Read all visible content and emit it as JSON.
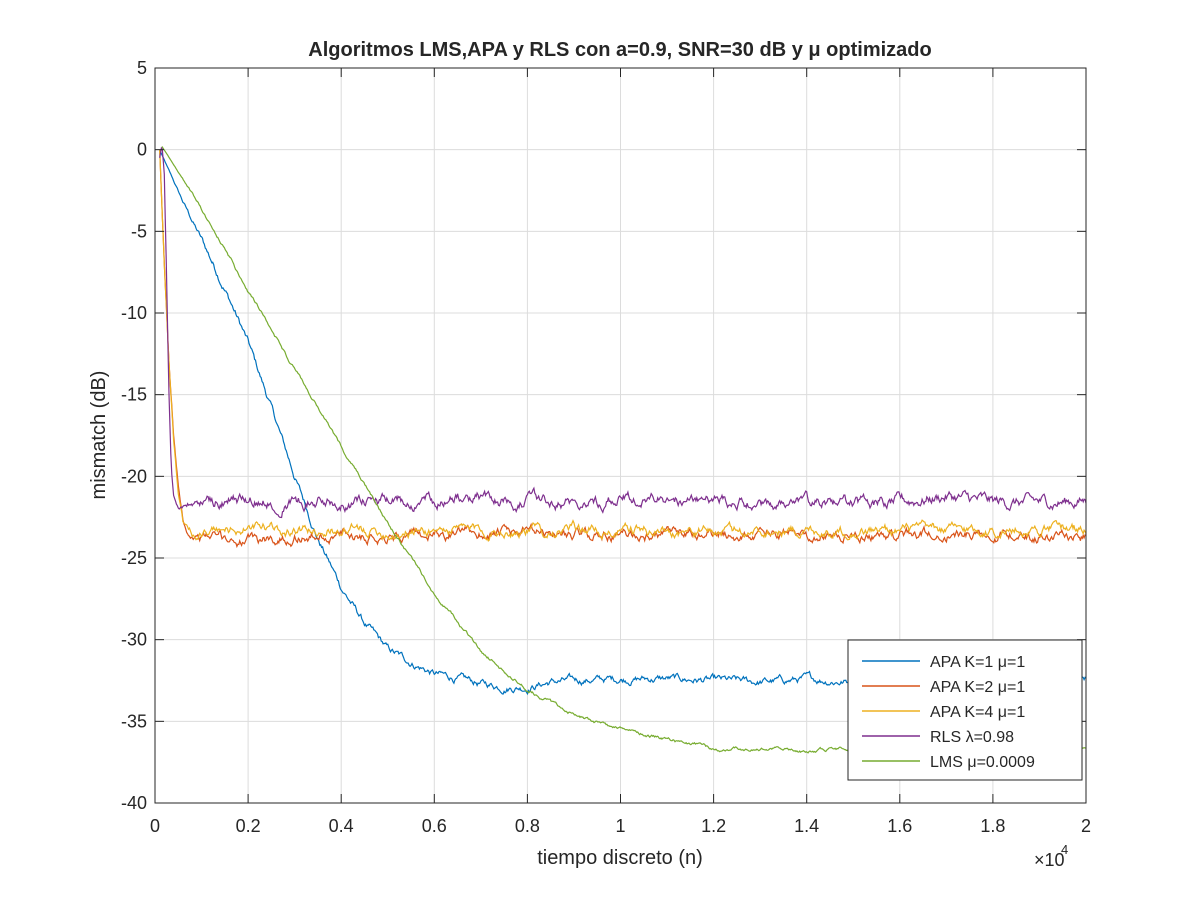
{
  "chart_data": {
    "type": "line",
    "title": "Algoritmos LMS,APA y RLS con a=0.9, SNR=30 dB y μ optimizado",
    "xlabel": "tiempo discreto (n)",
    "ylabel": "mismatch (dB)",
    "x_exponent_label": "×10",
    "x_exponent_power": "4",
    "xlim": [
      0,
      20000
    ],
    "ylim": [
      -40,
      5
    ],
    "x_ticks": [
      0,
      2000,
      4000,
      6000,
      8000,
      10000,
      12000,
      14000,
      16000,
      18000,
      20000
    ],
    "x_tick_labels": [
      "0",
      "0.2",
      "0.4",
      "0.6",
      "0.8",
      "1",
      "1.2",
      "1.4",
      "1.6",
      "1.8",
      "2"
    ],
    "y_ticks": [
      5,
      0,
      -5,
      -10,
      -15,
      -20,
      -25,
      -30,
      -35,
      -40
    ],
    "y_tick_labels": [
      "5",
      "0",
      "-5",
      "-10",
      "-15",
      "-20",
      "-25",
      "-30",
      "-35",
      "-40"
    ],
    "grid": true,
    "legend_position": "bottom-right",
    "series": [
      {
        "name": "APA K=1 μ=1",
        "color": "#0072BD",
        "noise": 0.25,
        "x": [
          100,
          300,
          600,
          1000,
          1500,
          2000,
          2500,
          3000,
          3500,
          4000,
          4500,
          5000,
          5500,
          6000,
          6500,
          7000,
          7500,
          8000,
          8500,
          9000,
          10000,
          11000,
          12000,
          13000,
          14000,
          15000,
          16000,
          17000,
          18000,
          19000,
          20000
        ],
        "y": [
          0,
          -1.3,
          -3.2,
          -5.5,
          -8.5,
          -11.8,
          -15.8,
          -20.0,
          -23.8,
          -26.8,
          -29.0,
          -30.6,
          -31.4,
          -32.1,
          -32.4,
          -32.7,
          -32.9,
          -32.9,
          -32.6,
          -32.5,
          -32.4,
          -32.4,
          -32.5,
          -32.6,
          -32.4,
          -32.6,
          -32.5,
          -32.6,
          -32.5,
          -32.7,
          -32.4
        ]
      },
      {
        "name": "APA K=2 μ=1",
        "color": "#D95319",
        "noise": 0.35,
        "x": [
          100,
          200,
          300,
          400,
          500,
          600,
          700,
          800,
          900,
          1000,
          1500,
          2000,
          3000,
          4000,
          5000,
          6000,
          7000,
          8000,
          10000,
          12000,
          14000,
          16000,
          18000,
          20000
        ],
        "y": [
          0,
          -7.0,
          -13.0,
          -17.5,
          -20.5,
          -22.5,
          -23.3,
          -23.6,
          -23.7,
          -23.7,
          -23.8,
          -24.0,
          -23.7,
          -23.6,
          -23.6,
          -23.6,
          -23.5,
          -23.5,
          -23.6,
          -23.6,
          -23.6,
          -23.6,
          -23.5,
          -23.7
        ]
      },
      {
        "name": "APA K=4 μ=1",
        "color": "#EDB120",
        "noise": 0.35,
        "x": [
          100,
          200,
          300,
          400,
          500,
          600,
          700,
          800,
          900,
          1000,
          1500,
          2000,
          3000,
          4000,
          5000,
          6000,
          7000,
          8000,
          10000,
          12000,
          14000,
          16000,
          18000,
          20000
        ],
        "y": [
          0,
          -7.0,
          -13.0,
          -17.8,
          -21.0,
          -22.8,
          -23.4,
          -23.6,
          -23.6,
          -23.5,
          -23.3,
          -23.2,
          -23.3,
          -23.3,
          -23.4,
          -23.3,
          -23.3,
          -23.3,
          -23.3,
          -23.4,
          -23.3,
          -23.3,
          -23.3,
          -23.2
        ]
      },
      {
        "name": "RLS λ=0.98",
        "color": "#7E2F8E",
        "noise": 0.4,
        "x": [
          100,
          150,
          200,
          250,
          300,
          350,
          400,
          500,
          1000,
          2000,
          3000,
          4000,
          5000,
          6000,
          7000,
          8000,
          9000,
          10000,
          12000,
          14000,
          16000,
          17000,
          18000,
          19000,
          20000
        ],
        "y": [
          -0.5,
          0.3,
          -1.5,
          -8.0,
          -15.0,
          -19.5,
          -21.2,
          -21.9,
          -21.6,
          -21.4,
          -21.5,
          -21.5,
          -21.6,
          -21.4,
          -21.3,
          -21.5,
          -21.5,
          -21.4,
          -21.5,
          -21.7,
          -21.6,
          -21.2,
          -21.6,
          -21.6,
          -21.5
        ]
      },
      {
        "name": "LMS μ=0.0009",
        "color": "#77AC30",
        "noise": 0.12,
        "x": [
          150,
          1000,
          2000,
          3000,
          4000,
          5000,
          6000,
          7000,
          8000,
          9000,
          10000,
          11000,
          12000,
          13000,
          14000,
          15000,
          16000,
          17000,
          18000,
          19000,
          20000
        ],
        "y": [
          0.2,
          -3.6,
          -8.6,
          -13.4,
          -18.2,
          -22.9,
          -27.1,
          -30.7,
          -33.1,
          -34.6,
          -35.5,
          -36.1,
          -36.7,
          -36.7,
          -36.8,
          -36.7,
          -36.7,
          -36.7,
          -36.6,
          -36.7,
          -36.6
        ]
      }
    ]
  }
}
